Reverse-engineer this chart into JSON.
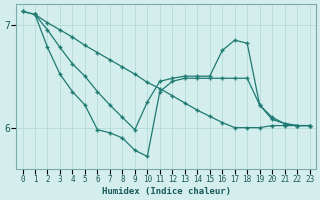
{
  "xlabel": "Humidex (Indice chaleur)",
  "bg_color": "#d4eeed",
  "line_color": "#1e7a72",
  "grid_color": "#afd8d4",
  "xlim": [
    -0.5,
    23.5
  ],
  "ylim": [
    5.6,
    7.2
  ],
  "yticks": [
    6,
    7
  ],
  "xticks": [
    0,
    1,
    2,
    3,
    4,
    5,
    6,
    7,
    8,
    9,
    10,
    11,
    12,
    13,
    14,
    15,
    16,
    17,
    18,
    19,
    20,
    21,
    22,
    23
  ],
  "line1_x": [
    0,
    1,
    2,
    3,
    4,
    5,
    6,
    7,
    8,
    9,
    10,
    11,
    12,
    13,
    14,
    15,
    16,
    17,
    18,
    19,
    20,
    21,
    22,
    23
  ],
  "line1_y": [
    7.13,
    7.1,
    7.02,
    6.95,
    6.88,
    6.8,
    6.73,
    6.66,
    6.59,
    6.52,
    6.44,
    6.38,
    6.31,
    6.24,
    6.17,
    6.11,
    6.05,
    6.0,
    6.0,
    6.0,
    6.02,
    6.02,
    6.02,
    6.02
  ],
  "line2_x": [
    0,
    1,
    2,
    3,
    4,
    5,
    6,
    7,
    8,
    9,
    10,
    11,
    12,
    13,
    14,
    15,
    16,
    17,
    18,
    19,
    20,
    21,
    22,
    23
  ],
  "line2_y": [
    7.13,
    7.1,
    6.95,
    6.78,
    6.62,
    6.5,
    6.35,
    6.22,
    6.1,
    5.98,
    6.25,
    6.45,
    6.48,
    6.5,
    6.5,
    6.5,
    6.75,
    6.85,
    6.82,
    6.22,
    6.1,
    6.04,
    6.02,
    6.02
  ],
  "line3_x": [
    1,
    2,
    3,
    4,
    5,
    6,
    7,
    8,
    9,
    10,
    11,
    12,
    13,
    14,
    15,
    16,
    17,
    18,
    19,
    20,
    21,
    22,
    23
  ],
  "line3_y": [
    7.1,
    6.78,
    6.52,
    6.35,
    6.22,
    5.98,
    5.95,
    5.9,
    5.78,
    5.72,
    6.35,
    6.45,
    6.48,
    6.48,
    6.48,
    6.48,
    6.48,
    6.48,
    6.22,
    6.08,
    6.04,
    6.02,
    6.02
  ]
}
